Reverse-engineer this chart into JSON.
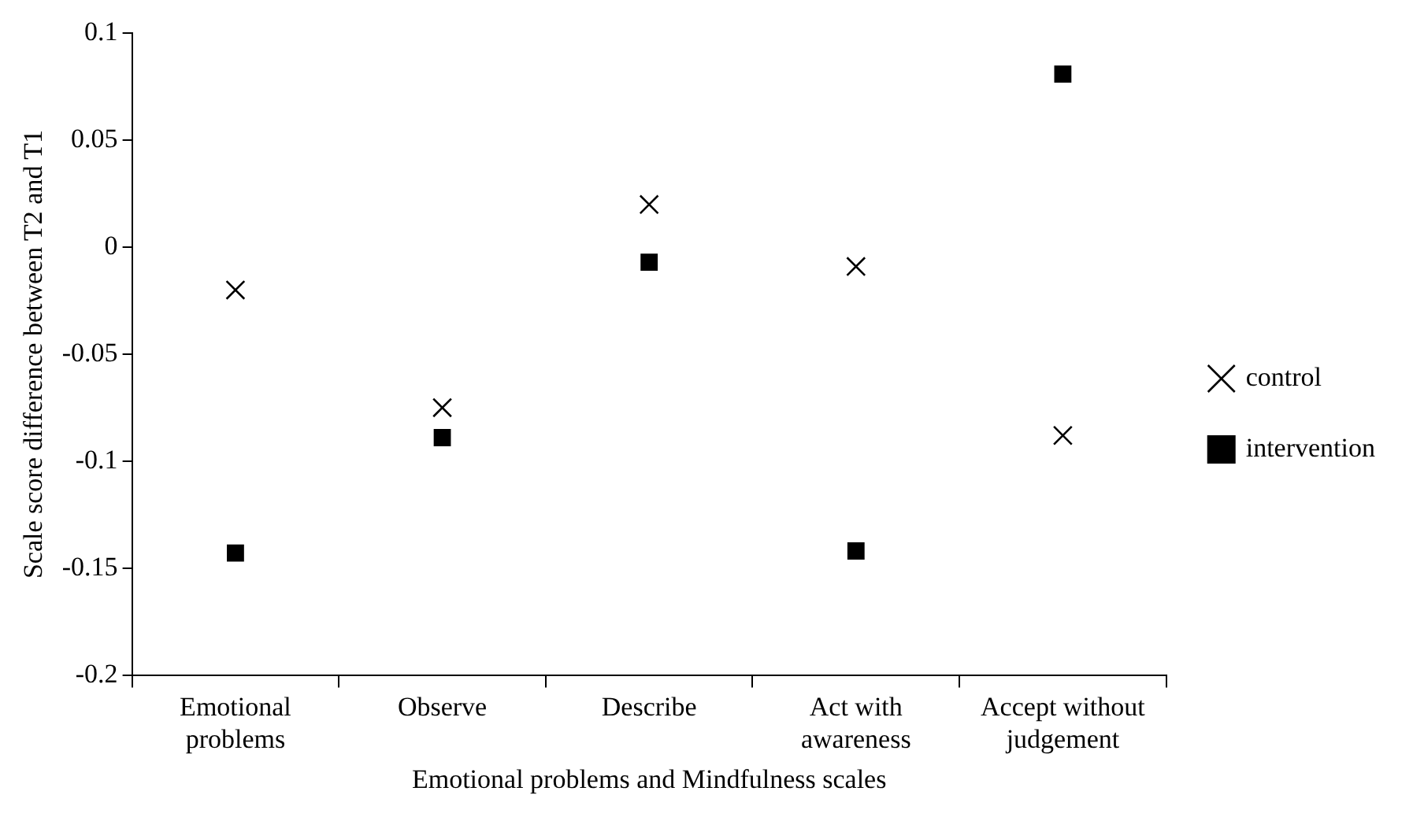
{
  "chart_data": {
    "type": "scatter",
    "xlabel": "Emotional problems and Mindfulness scales",
    "ylabel": "Scale score difference between T2 and T1",
    "categories": [
      "Emotional problems",
      "Observe",
      "Describe",
      "Act with awareness",
      "Accept without judgement"
    ],
    "series": [
      {
        "name": "control",
        "color": "#000000",
        "marker": "cross",
        "values": [
          -0.02,
          -0.075,
          0.02,
          -0.009,
          -0.088
        ]
      },
      {
        "name": "intervention",
        "color": "#000000",
        "marker": "square",
        "values": [
          -0.143,
          -0.089,
          -0.007,
          -0.142,
          0.081
        ]
      }
    ],
    "ylim": [
      -0.2,
      0.1
    ],
    "yticks": [
      -0.2,
      -0.15,
      -0.1,
      -0.05,
      0,
      0.05,
      0.1
    ],
    "grid": false,
    "legend": "right"
  }
}
